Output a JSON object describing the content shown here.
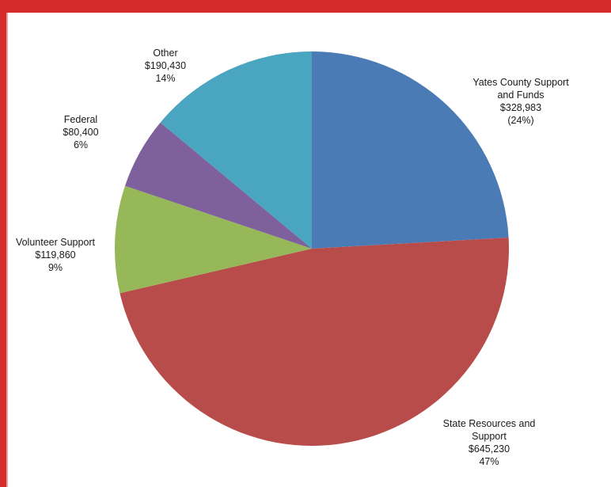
{
  "chart_data": {
    "type": "pie",
    "title": "",
    "slices": [
      {
        "label_lines": [
          "Yates County Support",
          "and Funds"
        ],
        "amount": "$328,983",
        "percent": "(24%)",
        "value": 328983,
        "color": "#4a7bb5"
      },
      {
        "label_lines": [
          "State Resources and",
          "Support"
        ],
        "amount": "$645,230",
        "percent": "47%",
        "value": 645230,
        "color": "#b84c4a"
      },
      {
        "label_lines": [
          "Volunteer Support"
        ],
        "amount": "$119,860",
        "percent": "9%",
        "value": 119860,
        "color": "#97b858"
      },
      {
        "label_lines": [
          "Federal"
        ],
        "amount": "$80,400",
        "percent": "6%",
        "value": 80400,
        "color": "#7d609c"
      },
      {
        "label_lines": [
          "Other"
        ],
        "amount": "$190,430",
        "percent": "14%",
        "value": 190430,
        "color": "#4aa5c0"
      }
    ]
  },
  "colors": {
    "header_band": "#d42a2a",
    "background": "#ffffff"
  }
}
